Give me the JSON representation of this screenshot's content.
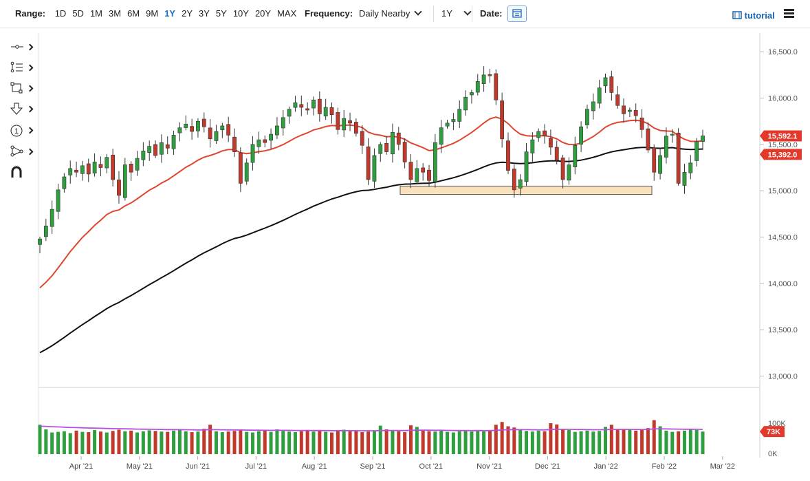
{
  "header": {
    "range_label": "Range:",
    "ranges": [
      "1D",
      "5D",
      "1M",
      "3M",
      "6M",
      "9M",
      "1Y",
      "2Y",
      "3Y",
      "5Y",
      "10Y",
      "20Y",
      "MAX"
    ],
    "active_range": "1Y",
    "frequency_label": "Frequency:",
    "frequency_value": "Daily Nearby",
    "period_value": "1Y",
    "date_label": "Date:",
    "tutorial_label": "tutorial"
  },
  "tools": [
    "crosshair-icon",
    "draw-list-icon",
    "rectangle-icon",
    "arrow-down-icon",
    "number-one-icon",
    "node-tree-icon",
    "magnet-icon"
  ],
  "colors": {
    "up": "#2e9e3f",
    "down": "#c0392b",
    "ma_short": "#e0452f",
    "ma_long": "#111111",
    "volume_avg": "#b84fe0",
    "price_tag_red": "#e3392b",
    "box_fill": "#fbe2bd",
    "box_stroke": "#555555"
  },
  "chart_data": {
    "type": "candlestick",
    "x_labels": [
      "Apr '21",
      "May '21",
      "Jun '21",
      "Jul '21",
      "Aug '21",
      "Sep '21",
      "Oct '21",
      "Nov '21",
      "Dec '21",
      "Jan '22",
      "Feb '22",
      "Mar '22"
    ],
    "y_ticks": [
      "16,500.0",
      "16,000.0",
      "15,500.0",
      "15,000.0",
      "14,500.0",
      "14,000.0",
      "13,500.0",
      "13,000.0"
    ],
    "y_ticks_values": [
      16500,
      16000,
      15500,
      15000,
      14500,
      14000,
      13500,
      13000
    ],
    "ylim": [
      12900,
      16650
    ],
    "last_price_tag": "15,592.1",
    "ma_tag": "15,392.0",
    "close_series": [
      14480,
      14620,
      14800,
      15010,
      15150,
      15240,
      15200,
      15270,
      15180,
      15310,
      15250,
      15360,
      15120,
      14950,
      15280,
      15200,
      15350,
      15430,
      15480,
      15380,
      15520,
      15460,
      15600,
      15680,
      15720,
      15640,
      15750,
      15690,
      15560,
      15640,
      15700,
      15600,
      15420,
      15080,
      15300,
      15500,
      15550,
      15520,
      15610,
      15700,
      15790,
      15880,
      15950,
      15900,
      15870,
      15980,
      15830,
      15900,
      15820,
      15660,
      15780,
      15730,
      15620,
      15490,
      15120,
      15380,
      15500,
      15420,
      15630,
      15500,
      15310,
      15120,
      15240,
      15200,
      15110,
      15520,
      15680,
      15730,
      15770,
      15880,
      16010,
      16060,
      16180,
      16250,
      16240,
      15980,
      15560,
      15220,
      15010,
      15120,
      15420,
      15550,
      15640,
      15590,
      15470,
      15330,
      15120,
      15280,
      15490,
      15690,
      15880,
      15960,
      16110,
      16220,
      16060,
      15920,
      15830,
      15870,
      15810,
      15660,
      15440,
      15200,
      15380,
      15590,
      15610,
      15080,
      15200,
      15300,
      15530,
      15592
    ],
    "box_zone": {
      "low": 14960,
      "high": 15050,
      "label": ""
    },
    "volume_ticks": [
      "100K",
      "0K"
    ],
    "volume_tag": "73K",
    "volume_values": [
      95,
      80,
      70,
      72,
      74,
      68,
      76,
      72,
      71,
      78,
      73,
      70,
      75,
      79,
      74,
      76,
      70,
      74,
      77,
      75,
      73,
      72,
      76,
      79,
      74,
      71,
      73,
      82,
      95,
      74,
      71,
      73,
      75,
      77,
      72,
      70,
      74,
      76,
      72,
      80,
      75,
      73,
      71,
      74,
      78,
      73,
      75,
      72,
      70,
      76,
      79,
      74,
      77,
      71,
      73,
      75,
      92,
      80,
      78,
      74,
      71,
      93,
      88,
      76,
      74,
      73,
      76,
      72,
      70,
      74,
      75,
      73,
      77,
      74,
      76,
      95,
      104,
      90,
      86,
      80,
      75,
      73,
      76,
      74,
      100,
      96,
      80,
      78,
      72,
      74,
      76,
      73,
      75,
      88,
      95,
      80,
      82,
      79,
      76,
      78,
      84,
      110,
      90,
      76,
      72,
      74,
      76,
      80,
      78,
      73
    ],
    "volume_avg_labels": ""
  }
}
